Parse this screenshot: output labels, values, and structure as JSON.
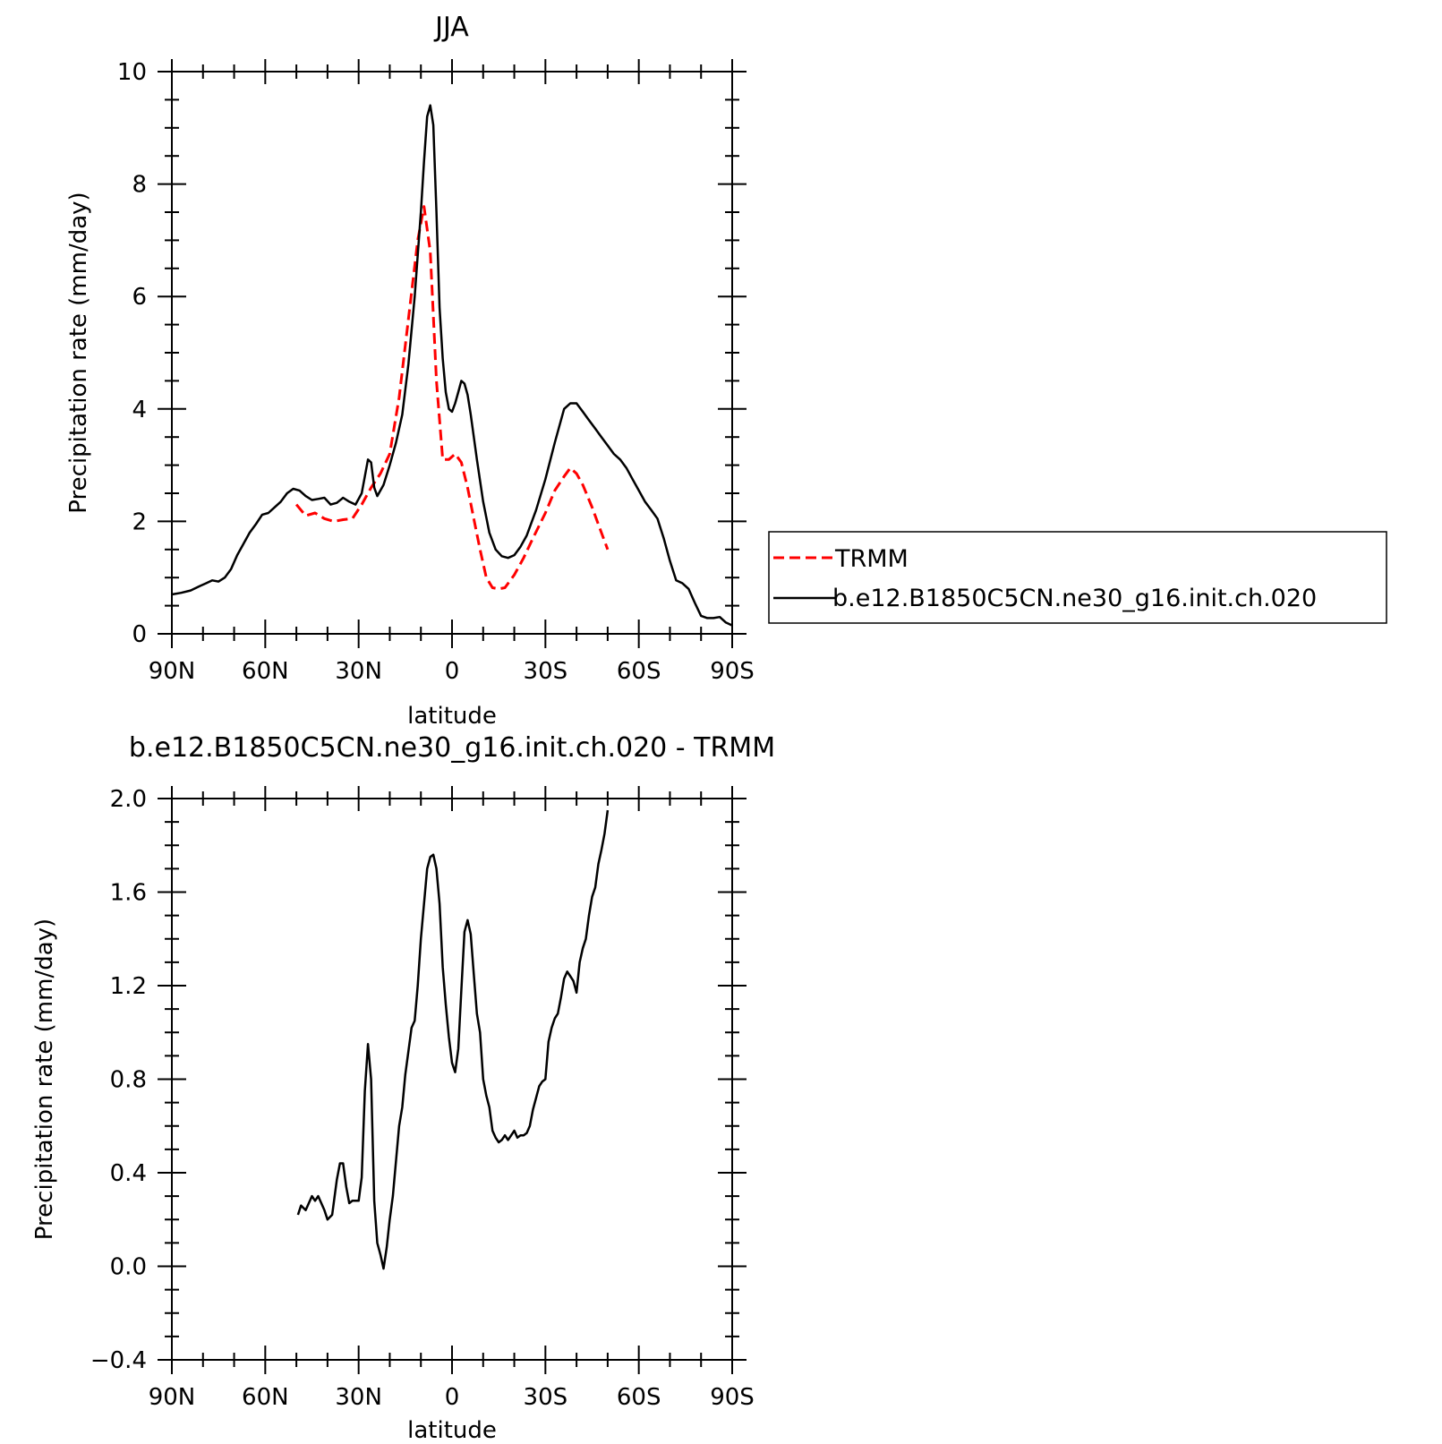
{
  "chart_data": [
    {
      "type": "line",
      "title": "JJA",
      "xlabel": "latitude",
      "ylabel": "Precipitation rate (mm/day)",
      "xlim": [
        90,
        -90
      ],
      "ylim": [
        0,
        10
      ],
      "x_ticks": [
        {
          "value": 90,
          "label": "90N"
        },
        {
          "value": 60,
          "label": "60N"
        },
        {
          "value": 30,
          "label": "30N"
        },
        {
          "value": 0,
          "label": "0"
        },
        {
          "value": -30,
          "label": "30S"
        },
        {
          "value": -60,
          "label": "60S"
        },
        {
          "value": -90,
          "label": "90S"
        }
      ],
      "y_ticks": [
        {
          "value": 0,
          "label": "0"
        },
        {
          "value": 2,
          "label": "2"
        },
        {
          "value": 4,
          "label": "4"
        },
        {
          "value": 6,
          "label": "6"
        },
        {
          "value": 8,
          "label": "8"
        },
        {
          "value": 10,
          "label": "10"
        }
      ],
      "legend": {
        "placement": "right",
        "entries": [
          {
            "name": "TRMM",
            "color": "#ff0000",
            "dash": "dashed"
          },
          {
            "name": "b.e12.B1850C5CN.ne30_g16.init.ch.020",
            "color": "#000000",
            "dash": "solid"
          }
        ]
      },
      "series": [
        {
          "name": "TRMM",
          "color": "#ff0000",
          "dash": "dashed",
          "x": [
            50,
            47,
            44,
            41,
            38,
            35,
            32,
            29,
            26,
            23,
            20,
            17,
            14,
            11,
            9,
            7,
            5,
            3,
            1,
            -1,
            -3,
            -5,
            -7,
            -9,
            -11,
            -13,
            -15,
            -17,
            -20,
            -23,
            -26,
            -30,
            -33,
            -36,
            -38,
            -40,
            -42,
            -45,
            -48,
            -50
          ],
          "values": [
            2.3,
            2.1,
            2.15,
            2.05,
            2.0,
            2.03,
            2.05,
            2.3,
            2.6,
            2.85,
            3.2,
            4.2,
            5.6,
            7.0,
            7.6,
            6.8,
            4.5,
            3.1,
            3.1,
            3.2,
            3.05,
            2.6,
            2.05,
            1.5,
            1.0,
            0.82,
            0.8,
            0.82,
            1.05,
            1.35,
            1.7,
            2.15,
            2.55,
            2.8,
            2.95,
            2.85,
            2.65,
            2.25,
            1.8,
            1.5
          ]
        },
        {
          "name": "b.e12.B1850C5CN.ne30_g16.init.ch.020",
          "color": "#000000",
          "dash": "solid",
          "x": [
            90,
            87,
            84,
            81,
            79,
            77,
            75,
            73,
            71,
            69,
            67,
            65,
            63,
            61,
            59,
            57,
            55,
            53,
            51,
            49,
            47,
            45,
            43,
            41,
            39,
            37,
            35,
            33,
            31,
            29,
            28,
            27,
            26,
            25,
            24,
            22,
            20,
            18,
            16,
            14,
            12,
            10,
            9,
            8,
            7,
            6,
            5,
            4,
            3,
            2,
            1,
            0,
            -1,
            -2,
            -3,
            -4,
            -5,
            -6,
            -8,
            -10,
            -12,
            -14,
            -16,
            -18,
            -20,
            -22,
            -24,
            -27,
            -30,
            -33,
            -36,
            -38,
            -40,
            -42,
            -44,
            -46,
            -48,
            -50,
            -52,
            -54,
            -56,
            -58,
            -60,
            -62,
            -64,
            -66,
            -68,
            -70,
            -72,
            -74,
            -76,
            -78,
            -80,
            -82,
            -84,
            -86,
            -88,
            -90
          ],
          "values": [
            0.7,
            0.73,
            0.77,
            0.85,
            0.9,
            0.95,
            0.93,
            1.0,
            1.15,
            1.4,
            1.6,
            1.8,
            1.95,
            2.12,
            2.15,
            2.25,
            2.35,
            2.5,
            2.58,
            2.55,
            2.45,
            2.38,
            2.4,
            2.42,
            2.3,
            2.33,
            2.42,
            2.35,
            2.3,
            2.5,
            2.8,
            3.1,
            3.05,
            2.6,
            2.45,
            2.65,
            3.0,
            3.4,
            3.9,
            4.8,
            6.0,
            7.5,
            8.4,
            9.2,
            9.4,
            9.05,
            7.5,
            5.8,
            4.9,
            4.3,
            4.0,
            3.95,
            4.1,
            4.3,
            4.5,
            4.45,
            4.25,
            3.9,
            3.1,
            2.35,
            1.8,
            1.5,
            1.38,
            1.35,
            1.4,
            1.55,
            1.75,
            2.2,
            2.75,
            3.4,
            4.0,
            4.1,
            4.1,
            3.95,
            3.8,
            3.65,
            3.5,
            3.35,
            3.2,
            3.1,
            2.95,
            2.75,
            2.55,
            2.35,
            2.2,
            2.05,
            1.7,
            1.3,
            0.95,
            0.9,
            0.8,
            0.55,
            0.32,
            0.28,
            0.28,
            0.3,
            0.2,
            0.15
          ]
        }
      ]
    },
    {
      "type": "line",
      "title": "b.e12.B1850C5CN.ne30_g16.init.ch.020 - TRMM",
      "xlabel": "latitude",
      "ylabel": "Precipitation rate (mm/day)",
      "xlim": [
        90,
        -90
      ],
      "ylim": [
        -0.4,
        2.0
      ],
      "x_ticks": [
        {
          "value": 90,
          "label": "90N"
        },
        {
          "value": 60,
          "label": "60N"
        },
        {
          "value": 30,
          "label": "30N"
        },
        {
          "value": 0,
          "label": "0"
        },
        {
          "value": -30,
          "label": "30S"
        },
        {
          "value": -60,
          "label": "60S"
        },
        {
          "value": -90,
          "label": "90S"
        }
      ],
      "y_ticks": [
        {
          "value": -0.4,
          "label": "−0.4"
        },
        {
          "value": 0.0,
          "label": "0.0"
        },
        {
          "value": 0.4,
          "label": "0.4"
        },
        {
          "value": 0.8,
          "label": "0.8"
        },
        {
          "value": 1.2,
          "label": "1.2"
        },
        {
          "value": 1.6,
          "label": "1.6"
        },
        {
          "value": 2.0,
          "label": "2.0"
        }
      ],
      "series": [
        {
          "color": "#000000",
          "dash": "solid",
          "x": [
            49.5,
            48.5,
            47,
            46,
            45,
            44,
            43,
            41,
            40,
            38.5,
            37,
            36,
            35,
            34,
            33,
            32,
            30,
            29,
            28,
            27,
            26,
            25,
            24,
            23,
            22,
            21,
            20,
            19,
            18,
            17,
            16,
            15,
            14,
            13,
            12,
            11,
            10,
            9,
            8,
            7,
            6,
            5,
            4,
            3,
            2,
            1,
            0,
            -1,
            -2,
            -3,
            -4,
            -5,
            -6,
            -7,
            -8,
            -9,
            -10,
            -11,
            -12,
            -13,
            -14,
            -15,
            -16,
            -17,
            -18,
            -19,
            -20,
            -21,
            -22,
            -23,
            -24,
            -25,
            -26,
            -27,
            -28,
            -29,
            -30,
            -31,
            -32,
            -33,
            -34,
            -35,
            -36,
            -37,
            -38,
            -39,
            -40,
            -41,
            -42,
            -43,
            -44,
            -45,
            -46,
            -47,
            -48,
            -49,
            -50
          ],
          "values": [
            0.22,
            0.26,
            0.24,
            0.27,
            0.3,
            0.28,
            0.3,
            0.24,
            0.2,
            0.22,
            0.37,
            0.44,
            0.44,
            0.34,
            0.27,
            0.28,
            0.28,
            0.38,
            0.75,
            0.95,
            0.8,
            0.28,
            0.1,
            0.05,
            -0.01,
            0.08,
            0.2,
            0.3,
            0.45,
            0.6,
            0.68,
            0.82,
            0.92,
            1.02,
            1.05,
            1.2,
            1.4,
            1.55,
            1.7,
            1.75,
            1.76,
            1.7,
            1.55,
            1.28,
            1.12,
            0.98,
            0.87,
            0.83,
            0.93,
            1.18,
            1.43,
            1.48,
            1.42,
            1.25,
            1.08,
            1.0,
            0.8,
            0.73,
            0.68,
            0.58,
            0.55,
            0.53,
            0.54,
            0.56,
            0.54,
            0.56,
            0.58,
            0.55,
            0.56,
            0.56,
            0.57,
            0.6,
            0.67,
            0.72,
            0.77,
            0.79,
            0.8,
            0.96,
            1.02,
            1.06,
            1.08,
            1.15,
            1.23,
            1.26,
            1.24,
            1.22,
            1.17,
            1.3,
            1.36,
            1.4,
            1.5,
            1.58,
            1.62,
            1.72,
            1.78,
            1.85,
            1.95
          ]
        }
      ]
    }
  ]
}
